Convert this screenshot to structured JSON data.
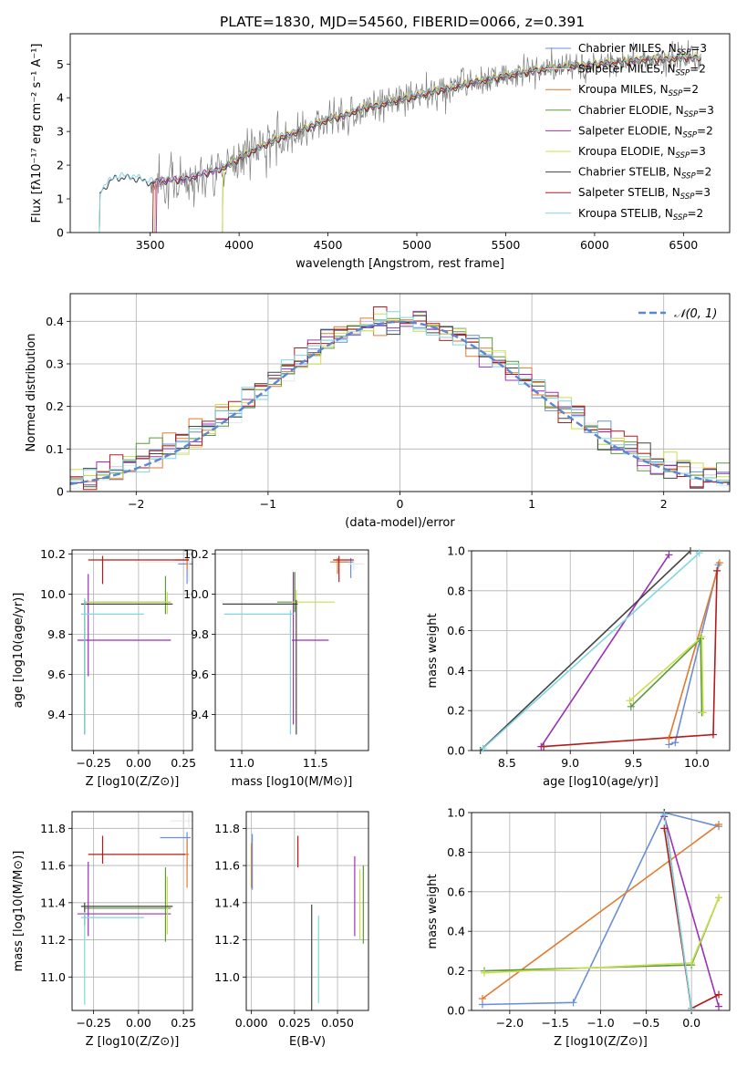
{
  "title": "PLATE=1830, MJD=54560, FIBERID=0066, z=0.391",
  "series": [
    {
      "name": "Chabrier MILES, N$_{SSP}$=3",
      "label_main": "Chabrier MILES, N",
      "label_sub": "SSP",
      "label_end": "=3",
      "color": "#6a8fd4"
    },
    {
      "name": "Salpeter MILES, N$_{SSP}$=2",
      "label_main": "Salpeter MILES, N",
      "label_sub": "SSP",
      "label_end": "=2",
      "color": "#e8e8e8"
    },
    {
      "name": "Kroupa MILES, N$_{SSP}$=2",
      "label_main": "Kroupa MILES, N",
      "label_sub": "SSP",
      "label_end": "=2",
      "color": "#e07a2e"
    },
    {
      "name": "Chabrier ELODIE, N$_{SSP}$=3",
      "label_main": "Chabrier ELODIE, N",
      "label_sub": "SSP",
      "label_end": "=3",
      "color": "#5a9a3c"
    },
    {
      "name": "Salpeter ELODIE, N$_{SSP}$=2",
      "label_main": "Salpeter ELODIE, N",
      "label_sub": "SSP",
      "label_end": "=2",
      "color": "#9b30b8"
    },
    {
      "name": "Kroupa ELODIE, N$_{SSP}$=3",
      "label_main": "Kroupa ELODIE, N",
      "label_sub": "SSP",
      "label_end": "=3",
      "color": "#c8e04a"
    },
    {
      "name": "Chabrier STELIB, N$_{SSP}$=2",
      "label_main": "Chabrier STELIB, N",
      "label_sub": "SSP",
      "label_end": "=2",
      "color": "#444444"
    },
    {
      "name": "Salpeter STELIB, N$_{SSP}$=3",
      "label_main": "Salpeter STELIB, N",
      "label_sub": "SSP",
      "label_end": "=3",
      "color": "#b41b1b"
    },
    {
      "name": "Kroupa STELIB, N$_{SSP}$=2",
      "label_main": "Kroupa STELIB, N",
      "label_sub": "SSP",
      "label_end": "=2",
      "color": "#7fd6e0"
    }
  ],
  "chart_data": [
    {
      "type": "line",
      "id": "spectrum",
      "xlabel": "wavelength [Angstrom, rest frame]",
      "ylabel": "Flux [f$_\\lambda$10$^{-17}$ erg cm$^{-2}$ s$^{-1}$ A$^{-1}$]",
      "ylabel_text": "Flux [fλ10⁻¹⁷ erg cm⁻² s⁻¹ A⁻¹]",
      "xlim": [
        3050,
        6760
      ],
      "ylim": [
        0,
        5.9
      ],
      "xticks": [
        3500,
        4000,
        4500,
        5000,
        5500,
        6000,
        6500
      ],
      "yticks": [
        0,
        1,
        2,
        3,
        4,
        5
      ],
      "data_color": "#7f7f7f",
      "model_anchor_x": [
        3210,
        3230,
        3300,
        3400,
        3500,
        3600,
        3700,
        3800,
        3900,
        4000,
        4100,
        4200,
        4300,
        4400,
        4500,
        4600,
        4700,
        4800,
        4900,
        5000,
        5100,
        5200,
        5300,
        5400,
        5500,
        5600,
        5700,
        5800,
        5900,
        6000,
        6100,
        6200,
        6300,
        6400,
        6500,
        6600
      ],
      "model_anchor_y": [
        1.15,
        1.3,
        1.65,
        1.65,
        1.5,
        1.55,
        1.6,
        1.75,
        1.9,
        2.2,
        2.5,
        2.75,
        2.95,
        3.15,
        3.35,
        3.5,
        3.7,
        3.8,
        3.95,
        4.05,
        4.2,
        4.3,
        4.45,
        4.55,
        4.65,
        4.75,
        4.85,
        4.9,
        4.95,
        5.0,
        5.05,
        5.1,
        5.15,
        5.15,
        5.2,
        5.2
      ],
      "data_start_x": 3500,
      "legend": "top-right"
    },
    {
      "type": "histogram",
      "id": "residuals",
      "xlabel": "(data-model)/error",
      "ylabel": "Normed distribution",
      "xlim": [
        -2.5,
        2.5
      ],
      "ylim": [
        0,
        0.465
      ],
      "xticks": [
        -2,
        -1,
        0,
        1,
        2
      ],
      "yticks": [
        0,
        0.1,
        0.2,
        0.3,
        0.4
      ],
      "bin_width": 0.1,
      "reference": {
        "name": "$\\mathcal{N}(0,1)$",
        "label": "𝒩(0, 1)",
        "color": "#5b86d2"
      },
      "legend": "top-right"
    },
    {
      "type": "scatter",
      "id": "age_vs_Z",
      "xlabel": "Z [log10(Z/Z⊙)]",
      "ylabel": "age  [log10(age/yr)]",
      "xlim": [
        -0.37,
        0.3
      ],
      "ylim": [
        9.22,
        10.22
      ],
      "xticks": [
        -0.25,
        0,
        0.25
      ],
      "ytick_values": [
        9.4,
        9.6,
        9.8,
        10.0,
        10.2
      ],
      "xtick_labels": [
        "−0.25",
        "0.00",
        "0.25"
      ],
      "ytick_labels": [
        "9.4",
        "9.6",
        "9.8",
        "10.0",
        "10.2"
      ],
      "points": [
        {
          "series": 0,
          "x": 0.27,
          "y": 10.15,
          "xerr": [
            0.05,
            0.03
          ],
          "yerr": [
            0.1,
            0.06
          ]
        },
        {
          "series": 1,
          "x": 0.28,
          "y": 10.16,
          "xerr": [
            0.3,
            0.02
          ],
          "yerr": [
            0.1,
            0.03
          ]
        },
        {
          "series": 2,
          "x": 0.27,
          "y": 10.17,
          "xerr": [
            0.07,
            0.01
          ],
          "yerr": [
            0.05,
            0.02
          ]
        },
        {
          "series": 3,
          "x": 0.15,
          "y": 9.96,
          "xerr": [
            0.45,
            0.03
          ],
          "yerr": [
            0.06,
            0.13
          ]
        },
        {
          "series": 4,
          "x": -0.28,
          "y": 9.77,
          "xerr": [
            0.06,
            0.46
          ],
          "yerr": [
            0.18,
            0.33
          ]
        },
        {
          "series": 5,
          "x": 0.16,
          "y": 9.96,
          "xerr": [
            0.46,
            0.02
          ],
          "yerr": [
            0.06,
            0.05
          ]
        },
        {
          "series": 6,
          "x": -0.3,
          "y": 9.95,
          "xerr": [
            0.02,
            0.49
          ],
          "yerr": [
            0.65,
            0.02
          ]
        },
        {
          "series": 7,
          "x": -0.2,
          "y": 10.17,
          "xerr": [
            0.08,
            0.48
          ],
          "yerr": [
            0.12,
            0.02
          ]
        },
        {
          "series": 8,
          "x": -0.3,
          "y": 9.9,
          "xerr": [
            0.02,
            0.33
          ],
          "yerr": [
            0.6,
            0.08
          ]
        }
      ]
    },
    {
      "type": "scatter",
      "id": "age_vs_mass",
      "xlabel": "mass [log10(M/M⊙)]",
      "ylabel": "",
      "xlim": [
        10.82,
        11.86
      ],
      "ylim": [
        9.22,
        10.22
      ],
      "xticks": [
        11.0,
        11.5
      ],
      "ytick_values": [
        9.4,
        9.6,
        9.8,
        10.0,
        10.2
      ],
      "xtick_labels": [
        "11.0",
        "11.5"
      ],
      "ytick_labels": [
        "9.4",
        "9.6",
        "9.8",
        "10.0",
        "10.2"
      ],
      "points": [
        {
          "series": 0,
          "x": 11.74,
          "y": 10.16,
          "xerr": [
            0.09,
            0.02
          ],
          "yerr": [
            0.08,
            0.02
          ]
        },
        {
          "series": 1,
          "x": 11.76,
          "y": 10.15,
          "xerr": [
            0.04,
            0.07
          ],
          "yerr": [
            0.03,
            0.02
          ]
        },
        {
          "series": 2,
          "x": 11.65,
          "y": 10.16,
          "xerr": [
            0.05,
            0.07
          ],
          "yerr": [
            0.06,
            0.02
          ]
        },
        {
          "series": 3,
          "x": 11.36,
          "y": 9.96,
          "xerr": [
            0.12,
            0.02
          ],
          "yerr": [
            0.05,
            0.15
          ]
        },
        {
          "series": 4,
          "x": 11.35,
          "y": 9.77,
          "xerr": [
            0.01,
            0.24
          ],
          "yerr": [
            0.42,
            0.34
          ]
        },
        {
          "series": 5,
          "x": 11.37,
          "y": 9.96,
          "xerr": [
            0.03,
            0.26
          ],
          "yerr": [
            0.06,
            0.06
          ]
        },
        {
          "series": 6,
          "x": 11.37,
          "y": 9.95,
          "xerr": [
            0.5,
            0.01
          ],
          "yerr": [
            0.65,
            0.02
          ]
        },
        {
          "series": 7,
          "x": 11.66,
          "y": 10.17,
          "xerr": [
            0.04,
            0.1
          ],
          "yerr": [
            0.11,
            0.02
          ]
        },
        {
          "series": 8,
          "x": 11.33,
          "y": 9.9,
          "xerr": [
            0.45,
            0.02
          ],
          "yerr": [
            0.6,
            0.02
          ]
        }
      ]
    },
    {
      "type": "line",
      "id": "weight_vs_age",
      "xlabel": "age  [log10(age/yr)]",
      "ylabel": "mass weight",
      "xlim": [
        8.22,
        10.26
      ],
      "ylim": [
        0,
        1
      ],
      "xticks": [
        8.5,
        9.0,
        9.5,
        10.0
      ],
      "yticks": [
        0,
        0.2,
        0.4,
        0.6,
        0.8,
        1.0
      ],
      "xtick_labels": [
        "8.5",
        "9.0",
        "9.5",
        "10.0"
      ],
      "ytick_labels": [
        "0.0",
        "0.2",
        "0.4",
        "0.6",
        "0.8",
        "1.0"
      ],
      "lines": [
        {
          "series": 0,
          "x": [
            9.78,
            9.83,
            10.17
          ],
          "y": [
            0.03,
            0.04,
            0.93
          ]
        },
        {
          "series": 2,
          "x": [
            9.78,
            10.18
          ],
          "y": [
            0.06,
            0.94
          ]
        },
        {
          "series": 3,
          "x": [
            9.48,
            10.03,
            10.04
          ],
          "y": [
            0.22,
            0.56,
            0.19
          ]
        },
        {
          "series": 4,
          "x": [
            8.77,
            9.78
          ],
          "y": [
            0.02,
            0.98
          ]
        },
        {
          "series": 5,
          "x": [
            9.47,
            10.04,
            10.05
          ],
          "y": [
            0.25,
            0.57,
            0.19
          ]
        },
        {
          "series": 6,
          "x": [
            8.29,
            9.95
          ],
          "y": [
            0.0,
            1.0
          ]
        },
        {
          "series": 7,
          "x": [
            8.79,
            10.13,
            10.16
          ],
          "y": [
            0.02,
            0.08,
            0.9
          ]
        },
        {
          "series": 8,
          "x": [
            8.31,
            10.02
          ],
          "y": [
            0.01,
            0.99
          ]
        }
      ]
    },
    {
      "type": "scatter",
      "id": "mass_vs_Z",
      "xlabel": "Z [log10(Z/Z⊙)]",
      "ylabel": "mass [log10(M/M⊙)]",
      "xlim": [
        -0.37,
        0.3
      ],
      "ylim": [
        10.82,
        11.89
      ],
      "xticks": [
        -0.25,
        0,
        0.25
      ],
      "ytick_values": [
        11.0,
        11.2,
        11.4,
        11.6,
        11.8
      ],
      "xtick_labels": [
        "−0.25",
        "0.00",
        "0.25"
      ],
      "ytick_labels": [
        "11.0",
        "11.2",
        "11.4",
        "11.6",
        "11.8"
      ],
      "points": [
        {
          "series": 0,
          "x": 0.27,
          "y": 11.75,
          "xerr": [
            0.15,
            0.02
          ],
          "yerr": [
            0.15,
            0.03
          ]
        },
        {
          "series": 1,
          "x": 0.28,
          "y": 11.84,
          "xerr": [
            0.1,
            0.02
          ],
          "yerr": [
            0.04,
            0.04
          ]
        },
        {
          "series": 2,
          "x": 0.27,
          "y": 11.66,
          "xerr": [
            0.02,
            0.01
          ],
          "yerr": [
            0.18,
            0.08
          ]
        },
        {
          "series": 3,
          "x": 0.15,
          "y": 11.37,
          "xerr": [
            0.45,
            0.03
          ],
          "yerr": [
            0.18,
            0.22
          ]
        },
        {
          "series": 4,
          "x": -0.28,
          "y": 11.34,
          "xerr": [
            0.06,
            0.46
          ],
          "yerr": [
            0.12,
            0.28
          ]
        },
        {
          "series": 5,
          "x": 0.16,
          "y": 11.38,
          "xerr": [
            0.46,
            0.02
          ],
          "yerr": [
            0.15,
            0.16
          ]
        },
        {
          "series": 6,
          "x": -0.3,
          "y": 11.38,
          "xerr": [
            0.02,
            0.49
          ],
          "yerr": [
            0.1,
            0.02
          ]
        },
        {
          "series": 7,
          "x": -0.2,
          "y": 11.66,
          "xerr": [
            0.08,
            0.46
          ],
          "yerr": [
            0.05,
            0.1
          ]
        },
        {
          "series": 8,
          "x": -0.3,
          "y": 11.32,
          "xerr": [
            0.02,
            0.33
          ],
          "yerr": [
            0.47,
            0.03
          ]
        }
      ]
    },
    {
      "type": "scatter",
      "id": "mass_vs_ebv",
      "xlabel": "E(B-V)",
      "ylabel": "",
      "xlim": [
        -0.003,
        0.068
      ],
      "ylim": [
        10.82,
        11.89
      ],
      "xticks": [
        0,
        0.025,
        0.05
      ],
      "ytick_values": [
        11.0,
        11.2,
        11.4,
        11.6,
        11.8
      ],
      "xtick_labels": [
        "0.000",
        "0.025",
        "0.050"
      ],
      "ytick_labels": [
        "11.0",
        "11.2",
        "11.4",
        "11.6",
        "11.8"
      ],
      "points": [
        {
          "series": 0,
          "x": 0.0005,
          "y": 11.62,
          "yerr": [
            0.15,
            0.15
          ]
        },
        {
          "series": 2,
          "x": 0.0,
          "y": 11.57,
          "yerr": [
            0.09,
            0.15
          ]
        },
        {
          "series": 3,
          "x": 0.065,
          "y": 11.4,
          "yerr": [
            0.22,
            0.2
          ]
        },
        {
          "series": 4,
          "x": 0.06,
          "y": 11.44,
          "yerr": [
            0.22,
            0.21
          ]
        },
        {
          "series": 5,
          "x": 0.063,
          "y": 11.36,
          "yerr": [
            0.16,
            0.22
          ]
        },
        {
          "series": 6,
          "x": 0.035,
          "y": 11.1,
          "yerr": [
            0.28,
            0.29
          ]
        },
        {
          "series": 7,
          "x": 0.027,
          "y": 11.68,
          "yerr": [
            0.09,
            0.08
          ]
        },
        {
          "series": 8,
          "x": 0.039,
          "y": 11.1,
          "yerr": [
            0.24,
            0.23
          ]
        }
      ]
    },
    {
      "type": "line",
      "id": "weight_vs_Z",
      "xlabel": "Z [log10(Z/Z⊙)]",
      "ylabel": "mass weight",
      "xlim": [
        -2.42,
        0.42
      ],
      "ylim": [
        0,
        1
      ],
      "xticks": [
        -2.0,
        -1.5,
        -1.0,
        -0.5,
        0.0
      ],
      "yticks": [
        0,
        0.2,
        0.4,
        0.6,
        0.8,
        1.0
      ],
      "xtick_labels": [
        "−2.0",
        "−1.5",
        "−1.0",
        "−0.5",
        "0.0"
      ],
      "ytick_labels": [
        "0.0",
        "0.2",
        "0.4",
        "0.6",
        "0.8",
        "1.0"
      ],
      "lines": [
        {
          "series": 0,
          "x": [
            -2.3,
            -1.3,
            -0.3,
            0.3
          ],
          "y": [
            0.03,
            0.04,
            1.0,
            0.93
          ]
        },
        {
          "series": 2,
          "x": [
            -2.3,
            0.3
          ],
          "y": [
            0.06,
            0.94
          ]
        },
        {
          "series": 3,
          "x": [
            -2.28,
            0.0,
            0.3
          ],
          "y": [
            0.2,
            0.23,
            0.57
          ]
        },
        {
          "series": 4,
          "x": [
            -0.3,
            0.3
          ],
          "y": [
            0.98,
            0.02
          ]
        },
        {
          "series": 5,
          "x": [
            -2.28,
            0.0,
            0.3
          ],
          "y": [
            0.19,
            0.24,
            0.57
          ]
        },
        {
          "series": 6,
          "x": [
            -0.3,
            0.0
          ],
          "y": [
            1.0,
            0.0
          ]
        },
        {
          "series": 7,
          "x": [
            -0.3,
            0.0,
            0.3
          ],
          "y": [
            0.92,
            0.01,
            0.08
          ]
        },
        {
          "series": 8,
          "x": [
            -0.3,
            0.0
          ],
          "y": [
            0.99,
            0.01
          ]
        }
      ]
    }
  ]
}
